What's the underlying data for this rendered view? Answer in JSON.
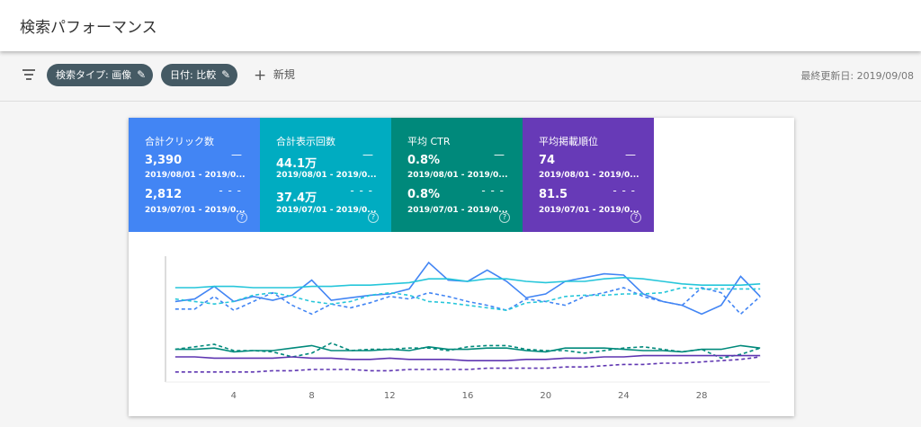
{
  "header": {
    "title": "検索パフォーマンス"
  },
  "toolbar": {
    "chips": [
      "検索タイプ: 画像",
      "日付: 比較"
    ],
    "new": "新規",
    "updated": "最終更新日: 2019/09/08"
  },
  "metrics": [
    {
      "label": "合計クリック数",
      "color": "#4285f4",
      "current": "3,390",
      "current_range": "2019/08/01 - 2019/0...",
      "previous": "2,812",
      "previous_range": "2019/07/01 - 2019/0..."
    },
    {
      "label": "合計表示回数",
      "color": "#00acc1",
      "current": "44.1万",
      "current_range": "2019/08/01 - 2019/0...",
      "previous": "37.4万",
      "previous_range": "2019/07/01 - 2019/0..."
    },
    {
      "label": "平均 CTR",
      "color": "#00897b",
      "current": "0.8%",
      "current_range": "2019/08/01 - 2019/0...",
      "previous": "0.8%",
      "previous_range": "2019/07/01 - 2019/0..."
    },
    {
      "label": "平均掲載順位",
      "color": "#673ab7",
      "current": "74",
      "current_range": "2019/08/01 - 2019/0...",
      "previous": "81.5",
      "previous_range": "2019/07/01 - 2019/0..."
    }
  ],
  "chart_data": {
    "type": "line",
    "x": [
      1,
      2,
      3,
      4,
      5,
      6,
      7,
      8,
      9,
      10,
      11,
      12,
      13,
      14,
      15,
      16,
      17,
      18,
      19,
      20,
      21,
      22,
      23,
      24,
      25,
      26,
      27,
      28,
      29,
      30,
      31
    ],
    "xlim": [
      0.5,
      31.5
    ],
    "xticks": [
      4,
      8,
      12,
      16,
      20,
      24,
      28
    ],
    "ylim": [
      0,
      100
    ],
    "series": [
      {
        "color": "#4285f4",
        "dash": false,
        "values": [
          64,
          66,
          76,
          64,
          68,
          65,
          69,
          81,
          65,
          67,
          69,
          70,
          74,
          95,
          81,
          80,
          89,
          80,
          67,
          70,
          80,
          83,
          86,
          85,
          70,
          64,
          61,
          54,
          61,
          84,
          68
        ]
      },
      {
        "color": "#4285f4",
        "dash": true,
        "values": [
          58,
          58,
          68,
          57,
          64,
          71,
          61,
          54,
          62,
          59,
          63,
          68,
          66,
          71,
          68,
          64,
          61,
          57,
          66,
          64,
          61,
          68,
          71,
          75,
          68,
          64,
          61,
          75,
          71,
          54,
          68
        ]
      },
      {
        "color": "#26c6da",
        "dash": false,
        "values": [
          75,
          75,
          76,
          76,
          75,
          75,
          75,
          76,
          76,
          77,
          77,
          78,
          79,
          82,
          82,
          80,
          82,
          82,
          80,
          79,
          80,
          80,
          82,
          83,
          82,
          80,
          78,
          77,
          77,
          77,
          78
        ]
      },
      {
        "color": "#26c6da",
        "dash": true,
        "values": [
          66,
          64,
          62,
          64,
          69,
          71,
          68,
          64,
          62,
          64,
          69,
          71,
          69,
          64,
          63,
          61,
          59,
          57,
          63,
          64,
          68,
          69,
          69,
          70,
          70,
          71,
          75,
          74,
          74,
          74,
          74
        ]
      },
      {
        "color": "#00897b",
        "dash": false,
        "values": [
          26,
          26,
          27,
          24,
          25,
          25,
          27,
          29,
          25,
          25,
          25,
          26,
          25,
          28,
          26,
          26,
          27,
          27,
          25,
          24,
          27,
          27,
          27,
          26,
          25,
          25,
          24,
          26,
          26,
          29,
          27
        ]
      },
      {
        "color": "#00897b",
        "dash": true,
        "values": [
          26,
          28,
          30,
          25,
          25,
          24,
          20,
          23,
          31,
          25,
          26,
          26,
          27,
          27,
          25,
          28,
          29,
          29,
          26,
          25,
          25,
          23,
          25,
          27,
          28,
          26,
          24,
          26,
          19,
          22,
          27
        ]
      },
      {
        "color": "#5e35b1",
        "dash": false,
        "values": [
          20,
          20,
          19,
          19,
          19,
          19,
          20,
          19,
          19,
          18,
          18,
          19,
          18,
          18,
          18,
          17,
          17,
          17,
          18,
          18,
          19,
          19,
          20,
          20,
          21,
          21,
          21,
          21,
          21,
          21,
          21
        ]
      },
      {
        "color": "#5e35b1",
        "dash": true,
        "values": [
          8,
          8,
          8,
          8,
          8,
          9,
          9,
          10,
          10,
          10,
          9,
          9,
          10,
          10,
          10,
          10,
          11,
          11,
          11,
          11,
          12,
          12,
          13,
          14,
          14,
          15,
          15,
          16,
          17,
          18,
          20
        ]
      }
    ]
  }
}
